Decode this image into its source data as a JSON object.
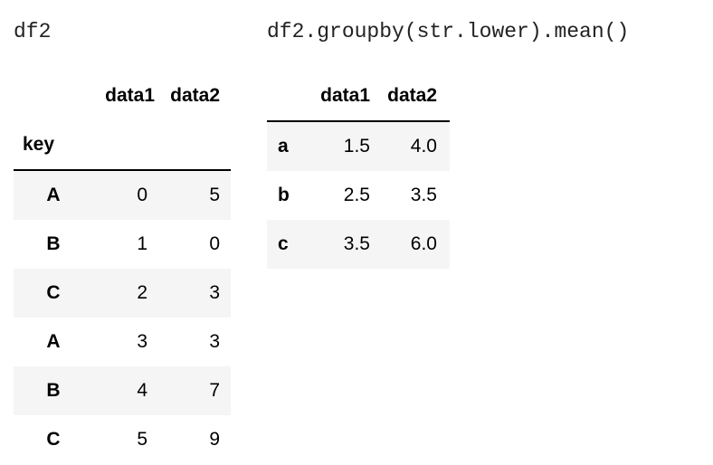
{
  "left": {
    "code": "df2",
    "columns": [
      "data1",
      "data2"
    ],
    "index_name": "key",
    "rows": [
      {
        "key": "A",
        "data1": "0",
        "data2": "5"
      },
      {
        "key": "B",
        "data1": "1",
        "data2": "0"
      },
      {
        "key": "C",
        "data1": "2",
        "data2": "3"
      },
      {
        "key": "A",
        "data1": "3",
        "data2": "3"
      },
      {
        "key": "B",
        "data1": "4",
        "data2": "7"
      },
      {
        "key": "C",
        "data1": "5",
        "data2": "9"
      }
    ]
  },
  "right": {
    "code": "df2.groupby(str.lower).mean()",
    "columns": [
      "data1",
      "data2"
    ],
    "rows": [
      {
        "key": "a",
        "data1": "1.5",
        "data2": "4.0"
      },
      {
        "key": "b",
        "data1": "2.5",
        "data2": "3.5"
      },
      {
        "key": "c",
        "data1": "3.5",
        "data2": "6.0"
      }
    ]
  }
}
